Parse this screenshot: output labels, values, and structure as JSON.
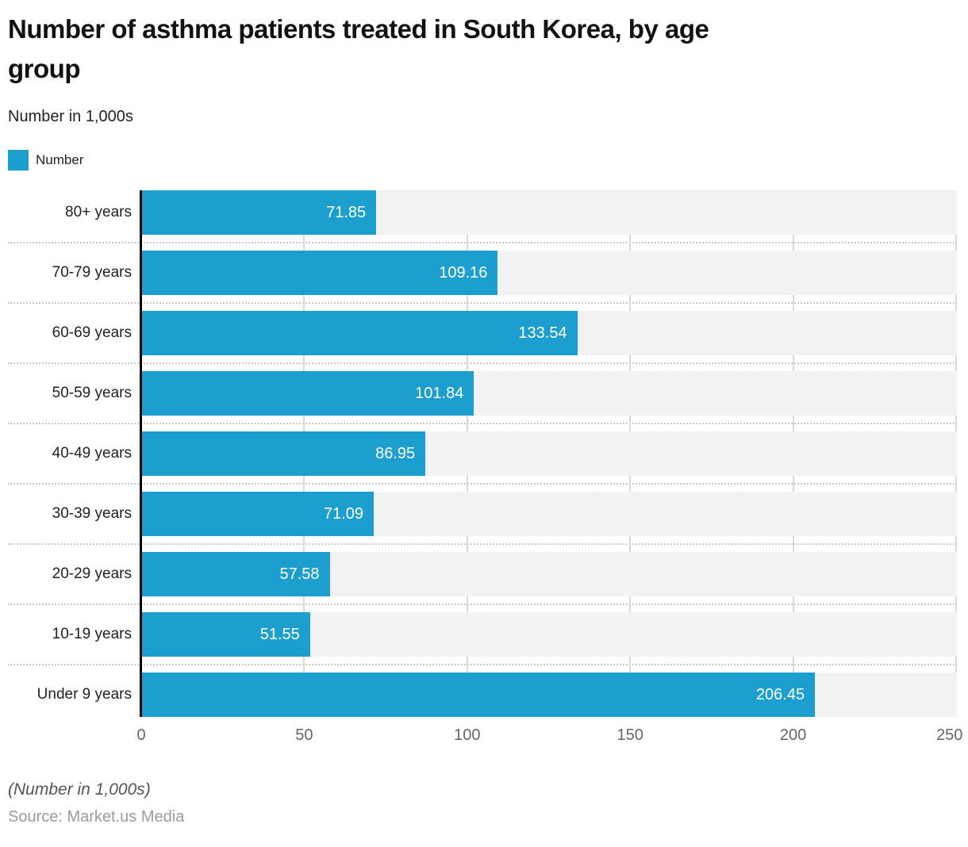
{
  "header": {
    "title_lines": [
      "Number of asthma patients treated in South Korea, by age",
      "group"
    ],
    "subtitle": "Number in 1,000s",
    "legend": {
      "label": "Number",
      "swatch_color": "#1c9fce"
    }
  },
  "chart_data": {
    "type": "bar",
    "orientation": "horizontal",
    "title": "Number of asthma patients treated in South Korea, by age group",
    "subtitle": "Number in 1,000s",
    "series_name": "Number",
    "categories": [
      "80+ years",
      "70-79 years",
      "60-69 years",
      "50-59 years",
      "40-49 years",
      "30-39 years",
      "20-29 years",
      "10-19 years",
      "Under 9 years"
    ],
    "values": [
      71.85,
      109.16,
      133.54,
      101.84,
      86.95,
      71.09,
      57.58,
      51.55,
      206.45
    ],
    "value_labels": [
      "71.85",
      "109.16",
      "133.54",
      "101.84",
      "86.95",
      "71.09",
      "57.58",
      "51.55",
      "206.45"
    ],
    "xlim": [
      0,
      250
    ],
    "x_ticks": [
      0,
      50,
      100,
      150,
      200,
      250
    ],
    "grid": true,
    "legend_position": "top-left",
    "colors": {
      "bar": "#1c9fce",
      "track": "#f2f2f2",
      "gridline": "#d9d9d9",
      "separator": "#c9c9c9",
      "axis": "#000000",
      "value_label": "#ffffff"
    }
  },
  "footer": {
    "note": "(Number in 1,000s)",
    "source": "Source: Market.us Media"
  }
}
